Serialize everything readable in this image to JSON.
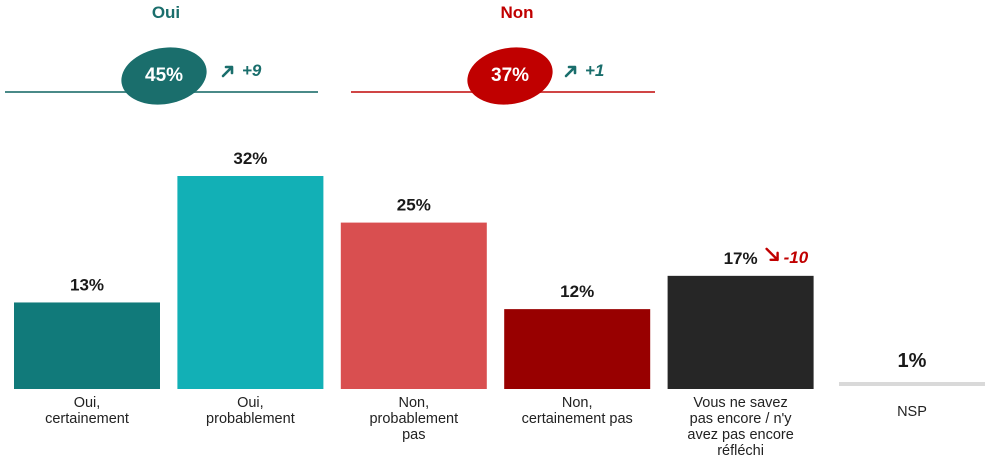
{
  "summary": {
    "oui": {
      "title": "Oui",
      "value": "45%",
      "change": "+9",
      "change_direction": "up",
      "color": "#1a6e6c",
      "trend_color": "#1a6e6c"
    },
    "non": {
      "title": "Non",
      "value": "37%",
      "change": "+1",
      "change_direction": "up",
      "color": "#c00000",
      "trend_color": "#1a6e6c"
    }
  },
  "chart_data": {
    "type": "bar",
    "categories": [
      "Oui,\ncertainement",
      "Oui,\nprobablement",
      "Non,\nprobablement\npas",
      "Non,\ncertainement pas",
      "Vous ne savez\npas encore / n'y\navez pas encore\nréfléchi",
      "NSP"
    ],
    "values": [
      13,
      32,
      25,
      12,
      17,
      1
    ],
    "value_labels": [
      "13%",
      "32%",
      "25%",
      "12%",
      "17%",
      "1%"
    ],
    "colors": [
      "#117a7a",
      "#12b0b6",
      "#d94f50",
      "#980000",
      "#262626",
      "#d9d9d9"
    ],
    "annotations": [
      {
        "category_index": 4,
        "text": "-10",
        "direction": "down",
        "color": "#c00000"
      }
    ],
    "ylim": [
      0,
      32
    ],
    "grid": false,
    "legend": "none"
  }
}
